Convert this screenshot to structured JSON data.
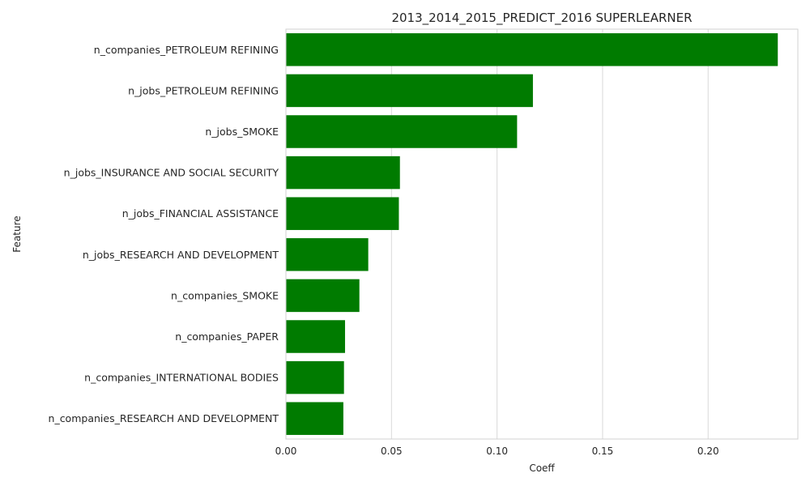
{
  "chart_data": {
    "type": "bar",
    "orientation": "horizontal",
    "title": "2013_2014_2015_PREDICT_2016 SUPERLEARNER",
    "xlabel": "Coeff",
    "ylabel": "Feature",
    "categories": [
      "n_companies_PETROLEUM REFINING",
      "n_jobs_PETROLEUM REFINING",
      "n_jobs_SMOKE",
      "n_jobs_INSURANCE AND SOCIAL SECURITY",
      "n_jobs_FINANCIAL ASSISTANCE",
      "n_jobs_RESEARCH AND DEVELOPMENT",
      "n_companies_SMOKE",
      "n_companies_PAPER",
      "n_companies_INTERNATIONAL BODIES",
      "n_companies_RESEARCH AND DEVELOPMENT"
    ],
    "values": [
      0.233,
      0.117,
      0.1095,
      0.054,
      0.0535,
      0.039,
      0.0348,
      0.028,
      0.0275,
      0.0272
    ],
    "xlim": [
      0,
      0.2425
    ],
    "xticks": [
      0.0,
      0.05,
      0.1,
      0.15,
      0.2
    ],
    "xtick_labels": [
      "0.00",
      "0.05",
      "0.10",
      "0.15",
      "0.20"
    ],
    "grid": true,
    "legend": "none",
    "bar_color": "#007b00"
  }
}
